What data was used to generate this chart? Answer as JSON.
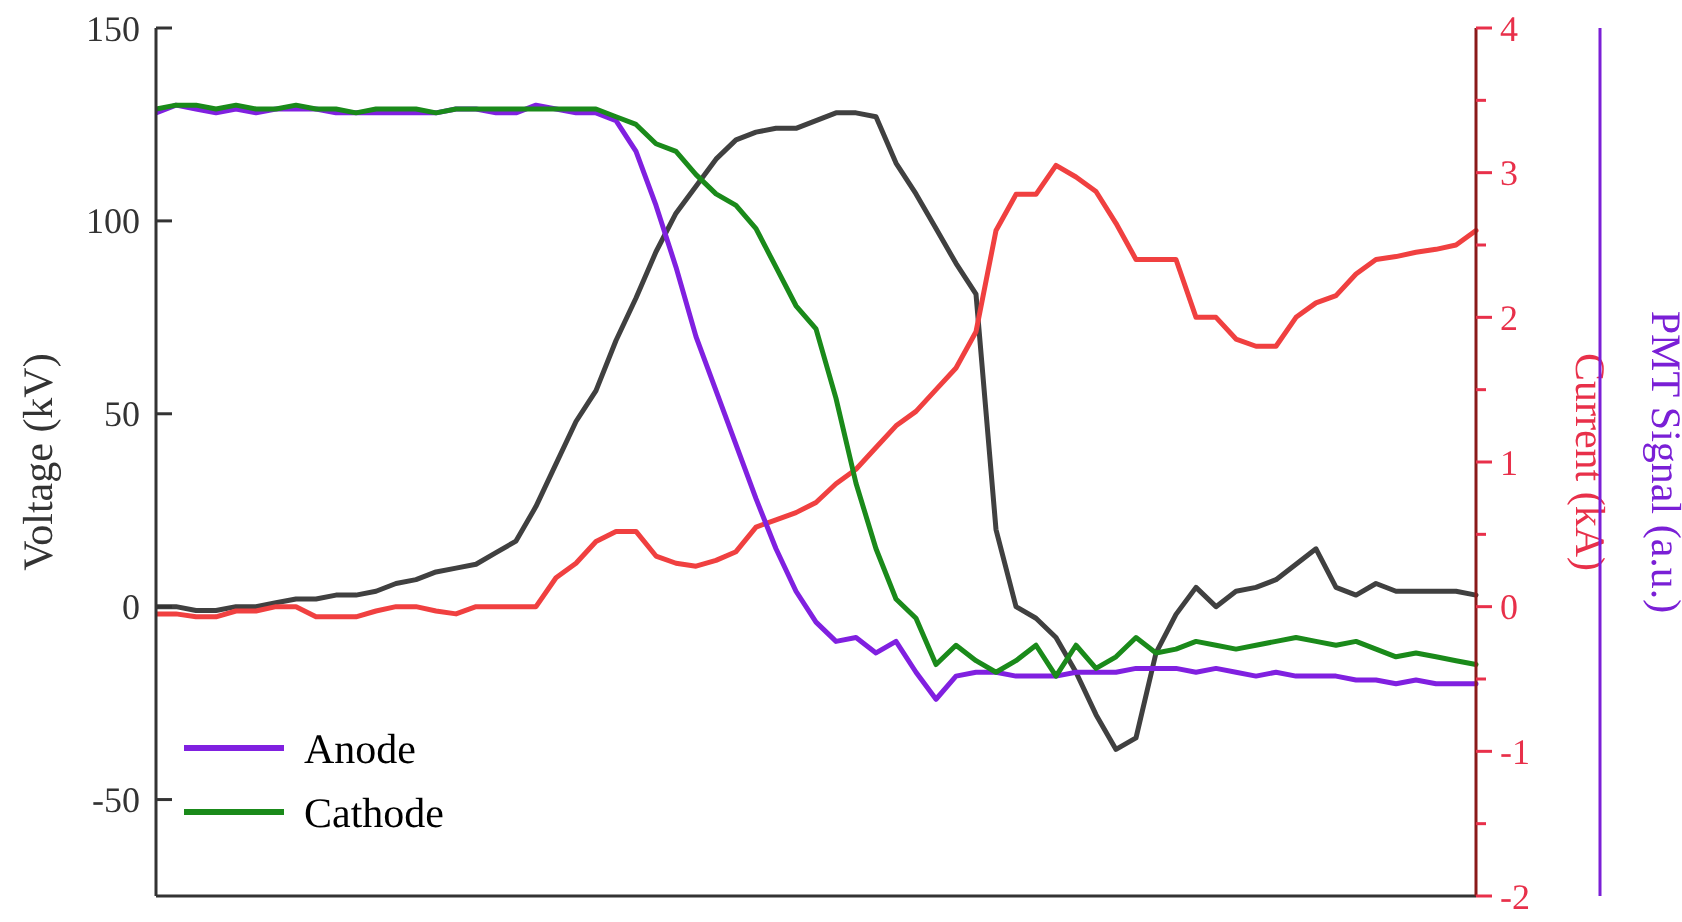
{
  "chart_data": {
    "type": "line",
    "ylabel": "Voltage (kV)",
    "y2label": "Current (kA)",
    "y3label": "PMT Signal (a.u.)",
    "categories": [
      null,
      null,
      null,
      null,
      null,
      null,
      null,
      null,
      null,
      null,
      null,
      null,
      null,
      null,
      null,
      null,
      null,
      null,
      null,
      null,
      null,
      null,
      null,
      null,
      null,
      null,
      null,
      null,
      null,
      null,
      null,
      null,
      null,
      null,
      null,
      null,
      null,
      null,
      null,
      null,
      null,
      null,
      null,
      null,
      null,
      null,
      null,
      null,
      null,
      null,
      null,
      null,
      null,
      null,
      null,
      null,
      null,
      null,
      null,
      null,
      null,
      null,
      null,
      null,
      null,
      null,
      null
    ],
    "ylim": [
      -75,
      150
    ],
    "yticks": [
      -50,
      0,
      50,
      100,
      150
    ],
    "y2lim": [
      -2,
      4
    ],
    "y2ticks": [
      -2,
      {
        "value": -1.5,
        "label": null
      },
      -1,
      {
        "value": -0.5,
        "label": null
      },
      0,
      {
        "value": 0.5,
        "label": null
      },
      1,
      {
        "value": 1.5,
        "label": null
      },
      2,
      {
        "value": 2.5,
        "label": null
      },
      3,
      {
        "value": 3.5,
        "label": null
      },
      4
    ],
    "legend": "bottom left",
    "grid": false,
    "marker": "none",
    "line_style": "solid",
    "series": [
      {
        "color": "#404040",
        "values": [
          0,
          0,
          -1,
          -1,
          0,
          0,
          1,
          2,
          2,
          3,
          3,
          4,
          6,
          7,
          9,
          10,
          11,
          14,
          17,
          26,
          37,
          48,
          56,
          69,
          80,
          92,
          102,
          109,
          116,
          121,
          123,
          124,
          124,
          126,
          128,
          128,
          127,
          115,
          107,
          98,
          89,
          81,
          20,
          0,
          -3,
          -8,
          -17,
          -28,
          -37,
          -34,
          -12,
          -2,
          5,
          0,
          4,
          5,
          7,
          11,
          15,
          5,
          3,
          6,
          4,
          4,
          4,
          4,
          3
        ]
      },
      {
        "color": "#f04040",
        "axis": "y2",
        "values": [
          -0.05,
          -0.05,
          -0.07,
          -0.07,
          -0.03,
          -0.03,
          0,
          0,
          -0.07,
          -0.07,
          -0.07,
          -0.03,
          0,
          0,
          -0.03,
          -0.05,
          0,
          0,
          0,
          0,
          0.2,
          0.3,
          0.45,
          0.52,
          0.52,
          0.35,
          0.3,
          0.28,
          0.32,
          0.38,
          0.55,
          0.6,
          0.65,
          0.72,
          0.85,
          0.95,
          1.1,
          1.25,
          1.35,
          1.5,
          1.65,
          1.9,
          2.6,
          2.85,
          2.85,
          3.05,
          2.97,
          2.87,
          2.65,
          2.4,
          2.4,
          2.4,
          2.0,
          2.0,
          1.85,
          1.8,
          1.8,
          2.0,
          2.1,
          2.15,
          2.3,
          2.4,
          2.42,
          2.45,
          2.47,
          2.5,
          2.6
        ]
      },
      {
        "name": "Anode",
        "color": "#8020e0",
        "values": [
          128,
          130,
          129,
          128,
          129,
          128,
          129,
          129,
          129,
          128,
          128,
          128,
          128,
          128,
          128,
          129,
          129,
          128,
          128,
          130,
          129,
          128,
          128,
          126,
          118,
          104,
          88,
          70,
          56,
          42,
          28,
          15,
          4,
          -4,
          -9,
          -8,
          -12,
          -9,
          -17,
          -24,
          -18,
          -17,
          -17,
          -18,
          -18,
          -18,
          -17,
          -17,
          -17,
          -16,
          -16,
          -16,
          -17,
          -16,
          -17,
          -18,
          -17,
          -18,
          -18,
          -18,
          -19,
          -19,
          -20,
          -19,
          -20,
          -20,
          -20
        ]
      },
      {
        "name": "Cathode",
        "color": "#1a8a1a",
        "values": [
          129,
          130,
          130,
          129,
          130,
          129,
          129,
          130,
          129,
          129,
          128,
          129,
          129,
          129,
          128,
          129,
          129,
          129,
          129,
          129,
          129,
          129,
          129,
          127,
          125,
          120,
          118,
          112,
          107,
          104,
          98,
          88,
          78,
          72,
          54,
          32,
          15,
          2,
          -3,
          -15,
          -10,
          -14,
          -17,
          -14,
          -10,
          -18,
          -10,
          -16,
          -13,
          -8,
          -12,
          -11,
          -9,
          -10,
          -11,
          -10,
          -9,
          -8,
          -9,
          -10,
          -9,
          -11,
          -13,
          -12,
          -13,
          -14,
          -15
        ]
      }
    ]
  }
}
